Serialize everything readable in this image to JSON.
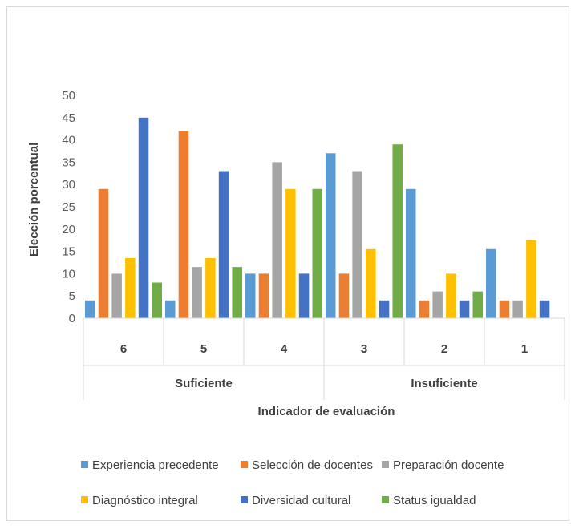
{
  "chart_data": {
    "type": "bar",
    "ylabel": "Elección porcentual",
    "xlabel": "Indicador de evaluación",
    "ylim": [
      0,
      50
    ],
    "yticks": [
      0,
      5,
      10,
      15,
      20,
      25,
      30,
      35,
      40,
      45,
      50
    ],
    "grid": false,
    "legend_position": "bottom",
    "categories": [
      "6",
      "5",
      "4",
      "3",
      "2",
      "1"
    ],
    "groups": [
      {
        "label": "Suficiente",
        "categories": [
          "6",
          "5",
          "4"
        ]
      },
      {
        "label": "Insuficiente",
        "categories": [
          "3",
          "2",
          "1"
        ]
      }
    ],
    "series": [
      {
        "name": "Experiencia precedente",
        "color": "#5B9BD5",
        "values": [
          4,
          4,
          10,
          37,
          29,
          15.5
        ]
      },
      {
        "name": "Selección de docentes",
        "color": "#ED7D31",
        "values": [
          29,
          42,
          10,
          10,
          4,
          4
        ]
      },
      {
        "name": "Preparación docente",
        "color": "#A5A5A5",
        "values": [
          10,
          11.5,
          35,
          33,
          6,
          4
        ]
      },
      {
        "name": "Diagnóstico integral",
        "color": "#FFC000",
        "values": [
          13.5,
          13.5,
          29,
          15.5,
          10,
          17.5
        ]
      },
      {
        "name": "Diversidad cultural",
        "color": "#4472C4",
        "values": [
          45,
          33,
          10,
          4,
          4,
          4
        ]
      },
      {
        "name": "Status igualdad",
        "color": "#70AD47",
        "values": [
          8,
          11.5,
          29,
          39,
          6,
          0
        ]
      }
    ]
  }
}
